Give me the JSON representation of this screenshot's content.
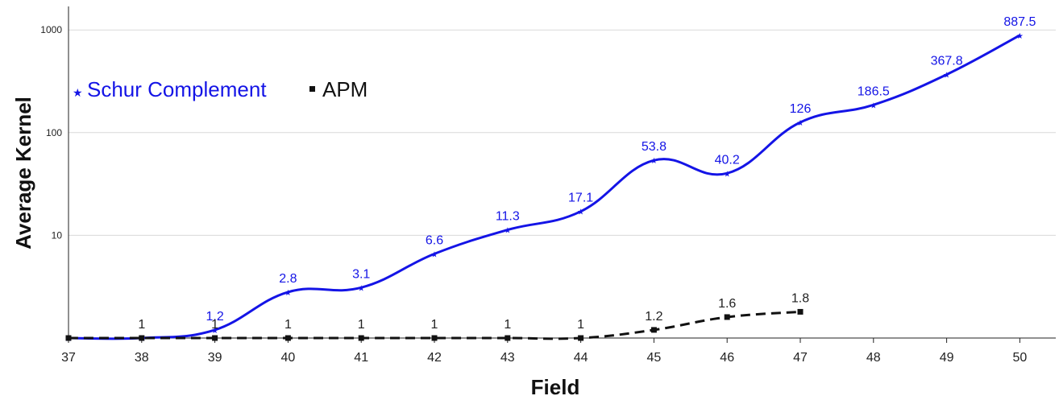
{
  "chart_data": {
    "type": "line",
    "xlabel": "Field",
    "ylabel": "Average Kernel",
    "yscale": "log",
    "ylim": [
      1,
      2000
    ],
    "grid": "horizontal",
    "legend_position": "top-left",
    "x": [
      37,
      38,
      39,
      40,
      41,
      42,
      43,
      44,
      45,
      46,
      47,
      48,
      49,
      50
    ],
    "x_tick_labels": [
      "37",
      "38",
      "39",
      "40",
      "41",
      "42",
      "43",
      "44",
      "45",
      "46",
      "47",
      "48",
      "49",
      "50"
    ],
    "y_ticks": [
      10,
      100,
      1000
    ],
    "y_tick_labels": [
      "10",
      "100",
      "1000"
    ],
    "series": [
      {
        "name": "Schur Complement",
        "color": "#1414e6",
        "style": "solid",
        "marker": "star",
        "x": [
          37,
          38,
          39,
          40,
          41,
          42,
          43,
          44,
          45,
          46,
          47,
          48,
          49,
          50
        ],
        "values": [
          1,
          1,
          1.2,
          2.8,
          3.1,
          6.6,
          11.3,
          17.1,
          53.8,
          40.2,
          126,
          186.5,
          367.8,
          887.5
        ],
        "labels": [
          "",
          "",
          "1.2",
          "2.8",
          "3.1",
          "6.6",
          "11.3",
          "17.1",
          "53.8",
          "40.2",
          "126",
          "186.5",
          "367.8",
          "887.5"
        ]
      },
      {
        "name": "APM",
        "color": "#111111",
        "style": "dashed",
        "marker": "square",
        "x": [
          37,
          38,
          39,
          40,
          41,
          42,
          43,
          44,
          45,
          46,
          47
        ],
        "values": [
          1,
          1,
          1,
          1,
          1,
          1,
          1,
          1,
          1.2,
          1.6,
          1.8
        ],
        "labels": [
          "",
          "1",
          "1",
          "1",
          "1",
          "1",
          "1",
          "1",
          "1.2",
          "1.6",
          "1.8"
        ]
      }
    ]
  }
}
